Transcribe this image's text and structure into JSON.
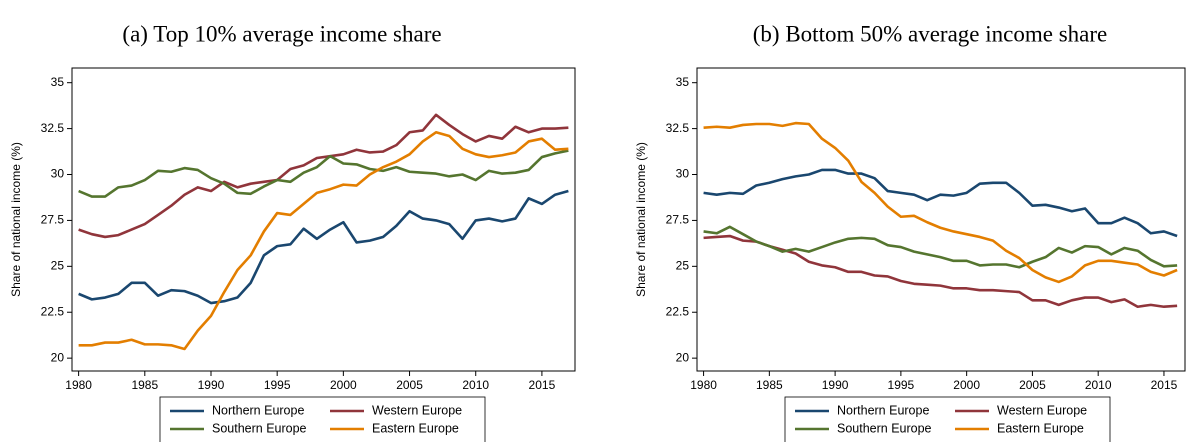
{
  "chart_data": [
    {
      "type": "line",
      "title": "(a) Top 10% average income share",
      "y_label": "Share of national income (%)",
      "x": [
        1980,
        1981,
        1982,
        1983,
        1984,
        1985,
        1986,
        1987,
        1988,
        1989,
        1990,
        1991,
        1992,
        1993,
        1994,
        1995,
        1996,
        1997,
        1998,
        1999,
        2000,
        2001,
        2002,
        2003,
        2004,
        2005,
        2006,
        2007,
        2008,
        2009,
        2010,
        2011,
        2012,
        2013,
        2014,
        2015,
        2016,
        2017
      ],
      "series": [
        {
          "name": "Northern Europe",
          "color": "#1a476f",
          "values": [
            23.5,
            23.2,
            23.3,
            23.5,
            24.1,
            24.1,
            23.4,
            23.7,
            23.65,
            23.4,
            23.0,
            23.1,
            23.3,
            24.1,
            25.6,
            26.1,
            26.2,
            27.05,
            26.5,
            27.0,
            27.4,
            26.3,
            26.4,
            26.6,
            27.2,
            28.0,
            27.6,
            27.5,
            27.3,
            26.5,
            27.5,
            27.6,
            27.45,
            27.6,
            28.7,
            28.4,
            28.9,
            29.1
          ]
        },
        {
          "name": "Western Europe",
          "color": "#90353b",
          "values": [
            27.0,
            26.75,
            26.6,
            26.7,
            27.0,
            27.3,
            27.8,
            28.3,
            28.9,
            29.3,
            29.1,
            29.6,
            29.3,
            29.5,
            29.6,
            29.7,
            30.3,
            30.5,
            30.9,
            31.0,
            31.1,
            31.35,
            31.2,
            31.25,
            31.6,
            32.3,
            32.4,
            33.25,
            32.7,
            32.2,
            31.8,
            32.1,
            31.95,
            32.6,
            32.3,
            32.5,
            32.5,
            32.55
          ]
        },
        {
          "name": "Southern Europe",
          "color": "#55752f",
          "values": [
            29.1,
            28.8,
            28.8,
            29.3,
            29.4,
            29.7,
            30.2,
            30.15,
            30.35,
            30.25,
            29.8,
            29.5,
            29.0,
            28.95,
            29.35,
            29.7,
            29.6,
            30.1,
            30.4,
            31.0,
            30.6,
            30.55,
            30.3,
            30.2,
            30.4,
            30.15,
            30.1,
            30.05,
            29.9,
            30.0,
            29.7,
            30.2,
            30.05,
            30.1,
            30.25,
            30.95,
            31.15,
            31.3
          ]
        },
        {
          "name": "Eastern Europe",
          "color": "#e37e00",
          "values": [
            20.7,
            20.7,
            20.85,
            20.85,
            21.0,
            20.75,
            20.75,
            20.7,
            20.5,
            21.5,
            22.3,
            23.6,
            24.8,
            25.6,
            26.9,
            27.9,
            27.8,
            28.4,
            29.0,
            29.2,
            29.45,
            29.4,
            30.0,
            30.4,
            30.7,
            31.1,
            31.8,
            32.3,
            32.1,
            31.4,
            31.1,
            30.95,
            31.05,
            31.2,
            31.8,
            31.95,
            31.35,
            31.4
          ]
        }
      ],
      "xlim": [
        1979.5,
        2017.5
      ],
      "ylim": [
        19.3,
        35.8
      ],
      "xticks": [
        1980,
        1985,
        1990,
        1995,
        2000,
        2005,
        2010,
        2015
      ],
      "yticks": [
        20,
        22.5,
        25,
        27.5,
        30,
        32.5,
        35
      ],
      "grid": false,
      "legend": "bottom"
    },
    {
      "type": "line",
      "title": "(b) Bottom 50% average income share",
      "y_label": "Share of national income (%)",
      "x": [
        1980,
        1981,
        1982,
        1983,
        1984,
        1985,
        1986,
        1987,
        1988,
        1989,
        1990,
        1991,
        1992,
        1993,
        1994,
        1995,
        1996,
        1997,
        1998,
        1999,
        2000,
        2001,
        2002,
        2003,
        2004,
        2005,
        2006,
        2007,
        2008,
        2009,
        2010,
        2011,
        2012,
        2013,
        2014,
        2015,
        2016
      ],
      "series": [
        {
          "name": "Northern Europe",
          "color": "#1a476f",
          "values": [
            29.0,
            28.9,
            29.0,
            28.95,
            29.4,
            29.55,
            29.75,
            29.9,
            30.0,
            30.25,
            30.25,
            30.05,
            30.05,
            29.8,
            29.1,
            29.0,
            28.9,
            28.6,
            28.9,
            28.85,
            29.0,
            29.5,
            29.55,
            29.55,
            29.0,
            28.3,
            28.35,
            28.2,
            28.0,
            28.15,
            27.35,
            27.35,
            27.65,
            27.35,
            26.8,
            26.9,
            26.65
          ]
        },
        {
          "name": "Western Europe",
          "color": "#90353b",
          "values": [
            26.55,
            26.6,
            26.65,
            26.4,
            26.35,
            26.1,
            25.9,
            25.7,
            25.25,
            25.05,
            24.95,
            24.7,
            24.7,
            24.5,
            24.45,
            24.2,
            24.05,
            24.0,
            23.95,
            23.8,
            23.8,
            23.7,
            23.7,
            23.65,
            23.6,
            23.15,
            23.15,
            22.9,
            23.15,
            23.3,
            23.3,
            23.05,
            23.2,
            22.8,
            22.9,
            22.8,
            22.85
          ]
        },
        {
          "name": "Southern Europe",
          "color": "#55752f",
          "values": [
            26.9,
            26.8,
            27.15,
            26.75,
            26.35,
            26.1,
            25.8,
            25.95,
            25.8,
            26.05,
            26.3,
            26.5,
            26.55,
            26.5,
            26.15,
            26.05,
            25.8,
            25.65,
            25.5,
            25.3,
            25.3,
            25.05,
            25.1,
            25.1,
            24.95,
            25.25,
            25.5,
            26.0,
            25.75,
            26.1,
            26.05,
            25.65,
            26.0,
            25.85,
            25.35,
            25.0,
            25.05
          ]
        },
        {
          "name": "Eastern Europe",
          "color": "#e37e00",
          "values": [
            32.55,
            32.6,
            32.55,
            32.7,
            32.75,
            32.75,
            32.65,
            32.8,
            32.75,
            31.95,
            31.45,
            30.75,
            29.6,
            29.0,
            28.25,
            27.7,
            27.75,
            27.4,
            27.1,
            26.9,
            26.75,
            26.6,
            26.4,
            25.85,
            25.45,
            24.8,
            24.4,
            24.15,
            24.45,
            25.05,
            25.3,
            25.3,
            25.2,
            25.1,
            24.7,
            24.5,
            24.8
          ]
        }
      ],
      "xlim": [
        1979.5,
        2016.6
      ],
      "ylim": [
        19.3,
        35.8
      ],
      "xticks": [
        1980,
        1985,
        1990,
        1995,
        2000,
        2005,
        2010,
        2015
      ],
      "yticks": [
        20,
        22.5,
        25,
        27.5,
        30,
        32.5,
        35
      ],
      "grid": false,
      "legend": "bottom"
    }
  ]
}
